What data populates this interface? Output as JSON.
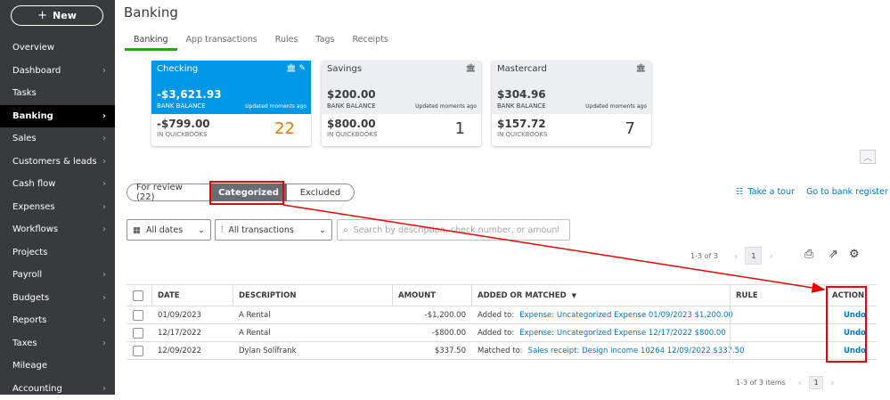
{
  "sidebar": {
    "new_label": "New",
    "items": [
      {
        "label": "Overview",
        "chevron": false
      },
      {
        "label": "Dashboard",
        "chevron": true
      },
      {
        "label": "Tasks",
        "chevron": false
      },
      {
        "label": "Banking",
        "chevron": true,
        "active": true
      },
      {
        "label": "Sales",
        "chevron": true
      },
      {
        "label": "Customers & leads",
        "chevron": true
      },
      {
        "label": "Cash flow",
        "chevron": true
      },
      {
        "label": "Expenses",
        "chevron": true
      },
      {
        "label": "Workflows",
        "chevron": true
      },
      {
        "label": "Projects",
        "chevron": false
      },
      {
        "label": "Payroll",
        "chevron": true
      },
      {
        "label": "Budgets",
        "chevron": true
      },
      {
        "label": "Reports",
        "chevron": true
      },
      {
        "label": "Taxes",
        "chevron": true
      },
      {
        "label": "Mileage",
        "chevron": false
      },
      {
        "label": "Accounting",
        "chevron": true
      }
    ]
  },
  "page": {
    "title": "Banking"
  },
  "tabs": [
    "Banking",
    "App transactions",
    "Rules",
    "Tags",
    "Receipts"
  ],
  "accounts": [
    {
      "name": "Checking",
      "bank_balance": "-$3,621.93",
      "bank_label": "BANK BALANCE",
      "updated": "Updated moments ago",
      "qb_balance": "-$799.00",
      "qb_label": "IN QUICKBOOKS",
      "count": "22"
    },
    {
      "name": "Savings",
      "bank_balance": "$200.00",
      "bank_label": "BANK BALANCE",
      "updated": "Updated moments ago",
      "qb_balance": "$800.00",
      "qb_label": "IN QUICKBOOKS",
      "count": "1"
    },
    {
      "name": "Mastercard",
      "bank_balance": "$304.96",
      "bank_label": "BANK BALANCE",
      "updated": "Updated moments ago",
      "qb_balance": "$157.72",
      "qb_label": "IN QUICKBOOKS",
      "count": "7"
    }
  ],
  "segments": {
    "for_review": "For review (22)",
    "categorized": "Categorized",
    "excluded": "Excluded"
  },
  "links": {
    "take_tour": "Take a tour",
    "bank_register": "Go to bank register"
  },
  "filters": {
    "dates": "All dates",
    "transactions": "All transactions",
    "search_placeholder": "Search by description, check number, or amount"
  },
  "pager_top": {
    "range": "1-3 of 3",
    "page": "1"
  },
  "table": {
    "headers": {
      "date": "DATE",
      "description": "DESCRIPTION",
      "amount": "AMOUNT",
      "added": "ADDED OR MATCHED",
      "rule": "RULE",
      "action": "ACTION"
    },
    "rows": [
      {
        "date": "01/09/2023",
        "description": "A Rental",
        "amount": "-$1,200.00",
        "prefix": "Added to:",
        "link": "Expense: Uncategorized Expense 01/09/2023 $1,200.00",
        "action": "Undo"
      },
      {
        "date": "12/17/2022",
        "description": "A Rental",
        "amount": "-$800.00",
        "prefix": "Added to:",
        "link": "Expense: Uncategorized Expense 12/17/2022 $800.00",
        "action": "Undo"
      },
      {
        "date": "12/09/2022",
        "description": "Dylan Solifrank",
        "amount": "$337.50",
        "prefix": "Matched to:",
        "link": "Sales receipt: Design income 10264 12/09/2022 $337.50",
        "action": "Undo"
      }
    ]
  },
  "pager_bottom": {
    "range": "1-3 of 3 items",
    "page": "1"
  },
  "colors": {
    "accent": "#0097e6",
    "green": "#2ca01c",
    "highlight": "#e00000",
    "link": "#0077c5"
  }
}
